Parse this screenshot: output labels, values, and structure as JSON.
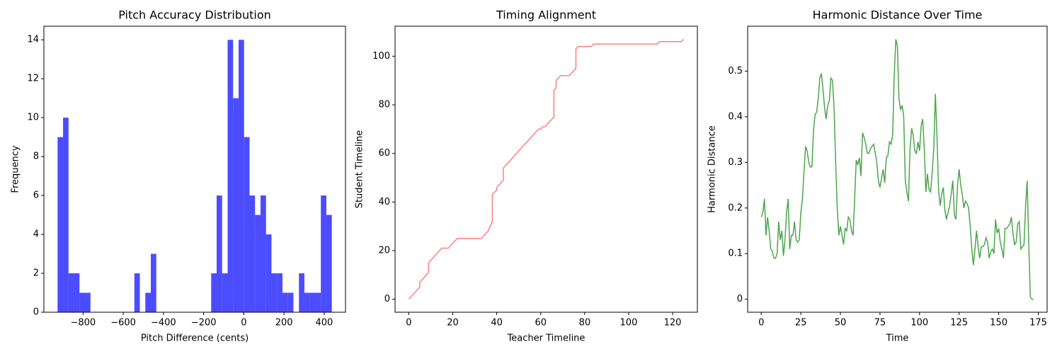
{
  "chart_data": [
    {
      "type": "histogram",
      "title": "Pitch Accuracy Distribution",
      "xlabel": "Pitch Difference (cents)",
      "ylabel": "Frequency",
      "bins": [
        -927,
        -899.7,
        -872.4,
        -845.1,
        -817.8,
        -790.5,
        -763.2,
        -735.9,
        -708.6,
        -681.3,
        -654,
        -626.7,
        -599.4,
        -572.1,
        -544.8,
        -517.5,
        -490.2,
        -462.9,
        -435.6,
        -408.3,
        -381,
        -353.7,
        -326.4,
        -299.1,
        -271.8,
        -244.5,
        -217.2,
        -189.9,
        -162.6,
        -135.3,
        -108,
        -80.7,
        -53.4,
        -26.1,
        1.2,
        28.5,
        55.8,
        83.1,
        110.4,
        137.7,
        165,
        192.3,
        219.6,
        246.9,
        274.2,
        301.5,
        328.8,
        356.1,
        383.4,
        410.7,
        438
      ],
      "values": [
        9,
        10,
        2,
        2,
        1,
        1,
        0,
        0,
        0,
        0,
        0,
        0,
        0,
        0,
        2,
        0,
        1,
        3,
        0,
        0,
        0,
        0,
        0,
        0,
        0,
        0,
        0,
        0,
        2,
        6,
        2,
        14,
        11,
        14,
        9,
        6,
        5,
        6,
        4,
        2,
        2,
        1,
        1,
        0,
        2,
        1,
        1,
        1,
        6,
        5
      ],
      "color": "#0000ff",
      "alpha": 0.7,
      "xlim": [
        -995,
        506
      ],
      "ylim": [
        0,
        14.7
      ],
      "xticks": [
        {
          "value": -800,
          "label": "−800"
        },
        {
          "value": -600,
          "label": "−600"
        },
        {
          "value": -400,
          "label": "−400"
        },
        {
          "value": -200,
          "label": "−200"
        },
        0,
        200,
        400
      ],
      "yticks": [
        0,
        2,
        4,
        6,
        8,
        10,
        12,
        14
      ]
    },
    {
      "type": "line",
      "title": "Timing Alignment",
      "xlabel": "Teacher Timeline",
      "ylabel": "Student Timeline",
      "x": [
        0,
        5,
        5,
        8,
        9,
        9,
        15,
        18,
        22,
        33,
        36,
        37,
        38,
        38,
        40,
        40,
        43,
        43,
        59,
        60,
        61,
        62,
        66,
        66,
        67,
        67,
        69,
        73,
        76,
        76,
        77,
        83,
        84,
        113,
        114,
        124,
        125
      ],
      "values": [
        0,
        5,
        7,
        10,
        11,
        15,
        21,
        21,
        25,
        25,
        28,
        30,
        32,
        43,
        45,
        46,
        49,
        54,
        70,
        70,
        71,
        71,
        75,
        86,
        87,
        90,
        92,
        92,
        95,
        103,
        104,
        104,
        105,
        105,
        106,
        106,
        107
      ],
      "color": "#ff0000",
      "alpha": 0.5,
      "xlim": [
        -6.25,
        131.25
      ],
      "ylim": [
        -5.35,
        112.35
      ],
      "xticks": [
        0,
        20,
        40,
        60,
        80,
        100,
        120
      ],
      "yticks": [
        0,
        20,
        40,
        60,
        80,
        100
      ]
    },
    {
      "type": "line",
      "title": "Harmonic Distance Over Time",
      "xlabel": "Time",
      "ylabel": "Harmonic Distance",
      "x": [
        0,
        1,
        2,
        3,
        4,
        5,
        6,
        7,
        8,
        9,
        10,
        11,
        12,
        13,
        14,
        15,
        16,
        17,
        18,
        19,
        20,
        21,
        22,
        23,
        24,
        25,
        26,
        27,
        28,
        29,
        30,
        31,
        32,
        33,
        34,
        35,
        36,
        37,
        38,
        39,
        40,
        41,
        42,
        43,
        44,
        45,
        46,
        47,
        48,
        49,
        50,
        51,
        52,
        53,
        54,
        55,
        56,
        57,
        58,
        59,
        60,
        61,
        62,
        63,
        64,
        65,
        66,
        67,
        68,
        69,
        70,
        71,
        72,
        73,
        74,
        75,
        76,
        77,
        78,
        79,
        80,
        81,
        82,
        83,
        84,
        85,
        86,
        87,
        88,
        89,
        90,
        91,
        92,
        93,
        94,
        95,
        96,
        97,
        98,
        99,
        100,
        101,
        102,
        103,
        104,
        105,
        106,
        107,
        108,
        109,
        110,
        111,
        112,
        113,
        114,
        115,
        116,
        117,
        118,
        119,
        120,
        121,
        122,
        123,
        124,
        125,
        126,
        127,
        128,
        129,
        130,
        131,
        132,
        133,
        134,
        135,
        136,
        137,
        138,
        139,
        140,
        141,
        142,
        143,
        144,
        145,
        146,
        147,
        148,
        149,
        150,
        151,
        152,
        153,
        154,
        155,
        156,
        157,
        158,
        159,
        160,
        161,
        162,
        163,
        164,
        165,
        166,
        167,
        168,
        169,
        170,
        171,
        172
      ],
      "values": [
        0.18,
        0.19,
        0.22,
        0.14,
        0.18,
        0.15,
        0.11,
        0.105,
        0.09,
        0.09,
        0.1,
        0.17,
        0.13,
        0.15,
        0.095,
        0.13,
        0.19,
        0.22,
        0.11,
        0.14,
        0.14,
        0.17,
        0.13,
        0.125,
        0.13,
        0.19,
        0.22,
        0.28,
        0.335,
        0.325,
        0.3,
        0.29,
        0.29,
        0.37,
        0.405,
        0.41,
        0.44,
        0.485,
        0.495,
        0.46,
        0.42,
        0.395,
        0.425,
        0.435,
        0.485,
        0.48,
        0.42,
        0.3,
        0.2,
        0.14,
        0.16,
        0.14,
        0.12,
        0.155,
        0.15,
        0.18,
        0.175,
        0.15,
        0.14,
        0.22,
        0.305,
        0.295,
        0.31,
        0.27,
        0.365,
        0.355,
        0.34,
        0.32,
        0.32,
        0.33,
        0.335,
        0.34,
        0.32,
        0.3,
        0.26,
        0.245,
        0.265,
        0.285,
        0.255,
        0.31,
        0.315,
        0.345,
        0.34,
        0.36,
        0.49,
        0.57,
        0.555,
        0.44,
        0.415,
        0.425,
        0.4,
        0.26,
        0.235,
        0.215,
        0.33,
        0.375,
        0.36,
        0.325,
        0.32,
        0.345,
        0.325,
        0.38,
        0.395,
        0.33,
        0.235,
        0.275,
        0.24,
        0.235,
        0.28,
        0.33,
        0.45,
        0.36,
        0.24,
        0.205,
        0.23,
        0.245,
        0.195,
        0.175,
        0.19,
        0.205,
        0.23,
        0.26,
        0.185,
        0.175,
        0.25,
        0.285,
        0.25,
        0.23,
        0.2,
        0.215,
        0.21,
        0.2,
        0.16,
        0.11,
        0.075,
        0.11,
        0.15,
        0.115,
        0.09,
        0.115,
        0.115,
        0.12,
        0.135,
        0.125,
        0.09,
        0.105,
        0.11,
        0.1,
        0.175,
        0.145,
        0.155,
        0.125,
        0.11,
        0.09,
        0.155,
        0.155,
        0.16,
        0.165,
        0.18,
        0.145,
        0.12,
        0.125,
        0.165,
        0.17,
        0.11,
        0.115,
        0.12,
        0.205,
        0.26,
        0.12,
        0.005,
        0,
        0
      ],
      "color": "#008000",
      "alpha": 0.7,
      "xlim": [
        -8.6,
        180.6
      ],
      "ylim": [
        -0.0285,
        0.5985
      ],
      "xticks": [
        0,
        25,
        50,
        75,
        100,
        125,
        150,
        175
      ],
      "yticks": [
        0,
        0.1,
        0.2,
        0.3,
        0.4,
        0.5
      ]
    }
  ]
}
